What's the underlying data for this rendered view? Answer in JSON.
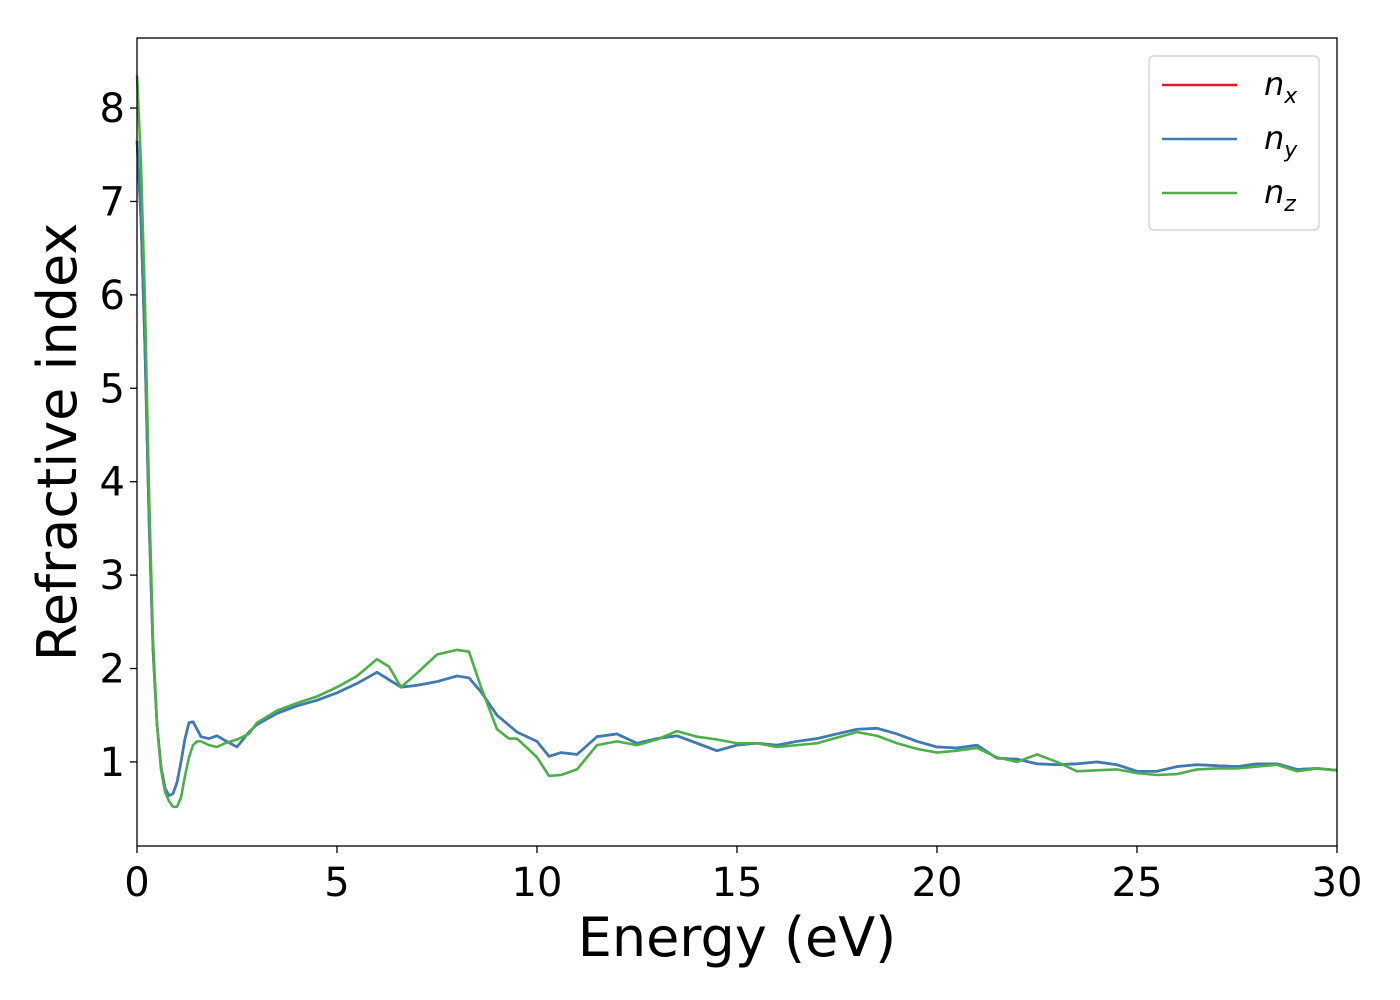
{
  "chart_data": {
    "type": "line",
    "title": "",
    "xlabel": "Energy (eV)",
    "ylabel": "Refractive index",
    "xlim": [
      0,
      30
    ],
    "ylim": [
      0.1,
      8.75
    ],
    "xticks": [
      0,
      5,
      10,
      15,
      20,
      25,
      30
    ],
    "yticks": [
      1,
      2,
      3,
      4,
      5,
      6,
      7,
      8
    ],
    "grid": false,
    "legend_position": "top-right",
    "series": [
      {
        "name": "n_x",
        "label_main": "n",
        "label_sub": "x",
        "color": "#e41a1c",
        "x": [
          0,
          0.1,
          0.2,
          0.3,
          0.4,
          0.5,
          0.6,
          0.7,
          0.8,
          0.9,
          1.0,
          1.1,
          1.2,
          1.3,
          1.4,
          1.5,
          1.6,
          1.8,
          2.0,
          2.2,
          2.5,
          2.8,
          3.0,
          3.5,
          4.0,
          4.5,
          5.0,
          5.5,
          6.0,
          6.3,
          6.6,
          7.0,
          7.5,
          8.0,
          8.3,
          8.6,
          9.0,
          9.5,
          10.0,
          10.3,
          10.6,
          11.0,
          11.5,
          12.0,
          12.5,
          13.0,
          13.5,
          14.0,
          14.5,
          15.0,
          15.5,
          16.0,
          16.5,
          17.0,
          17.5,
          18.0,
          18.5,
          19.0,
          19.5,
          20.0,
          20.5,
          21.0,
          21.5,
          22.0,
          22.5,
          23.0,
          23.5,
          24.0,
          24.5,
          25.0,
          25.5,
          26.0,
          26.5,
          27.0,
          27.5,
          28.0,
          28.5,
          29.0,
          29.5,
          30.0
        ],
        "y": [
          7.65,
          6.8,
          5.4,
          3.6,
          2.2,
          1.4,
          0.95,
          0.72,
          0.64,
          0.66,
          0.78,
          1.0,
          1.25,
          1.42,
          1.43,
          1.35,
          1.27,
          1.25,
          1.28,
          1.23,
          1.16,
          1.32,
          1.4,
          1.52,
          1.6,
          1.66,
          1.74,
          1.84,
          1.96,
          1.88,
          1.8,
          1.82,
          1.86,
          1.92,
          1.9,
          1.75,
          1.5,
          1.32,
          1.22,
          1.06,
          1.1,
          1.08,
          1.27,
          1.3,
          1.2,
          1.25,
          1.28,
          1.2,
          1.12,
          1.18,
          1.2,
          1.18,
          1.22,
          1.25,
          1.3,
          1.35,
          1.36,
          1.3,
          1.22,
          1.16,
          1.15,
          1.18,
          1.04,
          1.03,
          0.98,
          0.97,
          0.98,
          1.0,
          0.97,
          0.9,
          0.9,
          0.95,
          0.97,
          0.96,
          0.95,
          0.98,
          0.98,
          0.92,
          0.93,
          0.91
        ]
      },
      {
        "name": "n_y",
        "label_main": "n",
        "label_sub": "y",
        "color": "#377eb8",
        "x": [
          0,
          0.1,
          0.2,
          0.3,
          0.4,
          0.5,
          0.6,
          0.7,
          0.8,
          0.9,
          1.0,
          1.1,
          1.2,
          1.3,
          1.4,
          1.5,
          1.6,
          1.8,
          2.0,
          2.2,
          2.5,
          2.8,
          3.0,
          3.5,
          4.0,
          4.5,
          5.0,
          5.5,
          6.0,
          6.3,
          6.6,
          7.0,
          7.5,
          8.0,
          8.3,
          8.6,
          9.0,
          9.5,
          10.0,
          10.3,
          10.6,
          11.0,
          11.5,
          12.0,
          12.5,
          13.0,
          13.5,
          14.0,
          14.5,
          15.0,
          15.5,
          16.0,
          16.5,
          17.0,
          17.5,
          18.0,
          18.5,
          19.0,
          19.5,
          20.0,
          20.5,
          21.0,
          21.5,
          22.0,
          22.5,
          23.0,
          23.5,
          24.0,
          24.5,
          25.0,
          25.5,
          26.0,
          26.5,
          27.0,
          27.5,
          28.0,
          28.5,
          29.0,
          29.5,
          30.0
        ],
        "y": [
          7.65,
          6.8,
          5.4,
          3.6,
          2.2,
          1.4,
          0.95,
          0.72,
          0.64,
          0.66,
          0.78,
          1.0,
          1.25,
          1.42,
          1.43,
          1.35,
          1.27,
          1.25,
          1.28,
          1.23,
          1.16,
          1.32,
          1.4,
          1.52,
          1.6,
          1.66,
          1.74,
          1.84,
          1.96,
          1.88,
          1.8,
          1.82,
          1.86,
          1.92,
          1.9,
          1.75,
          1.5,
          1.32,
          1.22,
          1.06,
          1.1,
          1.08,
          1.27,
          1.3,
          1.2,
          1.25,
          1.28,
          1.2,
          1.12,
          1.18,
          1.2,
          1.18,
          1.22,
          1.25,
          1.3,
          1.35,
          1.36,
          1.3,
          1.22,
          1.16,
          1.15,
          1.18,
          1.04,
          1.03,
          0.98,
          0.97,
          0.98,
          1.0,
          0.97,
          0.9,
          0.9,
          0.95,
          0.97,
          0.96,
          0.95,
          0.98,
          0.98,
          0.92,
          0.93,
          0.91
        ]
      },
      {
        "name": "n_z",
        "label_main": "n",
        "label_sub": "z",
        "color": "#4daf4a",
        "x": [
          0,
          0.1,
          0.2,
          0.3,
          0.4,
          0.5,
          0.6,
          0.7,
          0.8,
          0.9,
          1.0,
          1.1,
          1.2,
          1.3,
          1.4,
          1.5,
          1.6,
          1.8,
          2.0,
          2.2,
          2.5,
          2.8,
          3.0,
          3.5,
          4.0,
          4.5,
          5.0,
          5.5,
          6.0,
          6.3,
          6.6,
          7.0,
          7.5,
          8.0,
          8.3,
          8.6,
          9.0,
          9.3,
          9.5,
          10.0,
          10.3,
          10.6,
          11.0,
          11.5,
          12.0,
          12.5,
          13.0,
          13.5,
          14.0,
          14.5,
          15.0,
          15.5,
          16.0,
          16.5,
          17.0,
          17.5,
          18.0,
          18.5,
          19.0,
          19.5,
          20.0,
          20.5,
          21.0,
          21.5,
          22.0,
          22.5,
          23.0,
          23.5,
          24.0,
          24.5,
          25.0,
          25.5,
          26.0,
          26.5,
          27.0,
          27.5,
          28.0,
          28.5,
          29.0,
          29.5,
          30.0
        ],
        "y": [
          8.35,
          7.4,
          5.9,
          3.9,
          2.3,
          1.4,
          0.92,
          0.68,
          0.58,
          0.52,
          0.52,
          0.62,
          0.85,
          1.05,
          1.18,
          1.22,
          1.22,
          1.18,
          1.16,
          1.2,
          1.24,
          1.3,
          1.42,
          1.55,
          1.63,
          1.7,
          1.8,
          1.92,
          2.1,
          2.02,
          1.8,
          1.95,
          2.15,
          2.2,
          2.18,
          1.8,
          1.35,
          1.25,
          1.25,
          1.05,
          0.85,
          0.86,
          0.92,
          1.18,
          1.22,
          1.18,
          1.24,
          1.33,
          1.27,
          1.24,
          1.2,
          1.2,
          1.16,
          1.18,
          1.2,
          1.26,
          1.32,
          1.28,
          1.2,
          1.14,
          1.1,
          1.12,
          1.15,
          1.05,
          1.0,
          1.08,
          1.0,
          0.9,
          0.91,
          0.92,
          0.88,
          0.86,
          0.87,
          0.92,
          0.93,
          0.93,
          0.95,
          0.97,
          0.9,
          0.93,
          0.91
        ]
      }
    ]
  }
}
